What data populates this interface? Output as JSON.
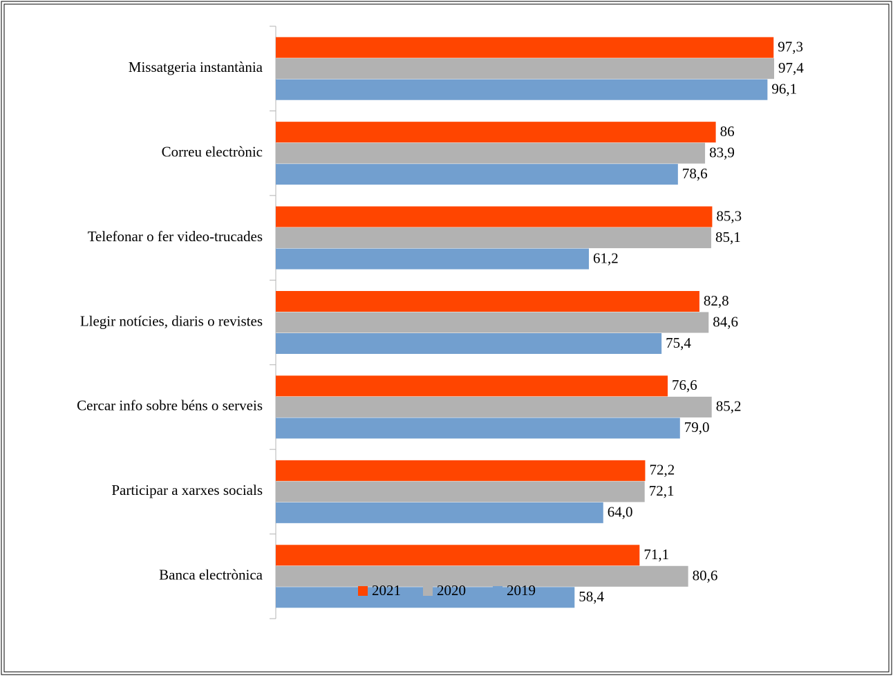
{
  "chart_data": {
    "type": "bar",
    "orientation": "horizontal",
    "categories": [
      "Missatgeria instantània",
      "Correu electrònic",
      "Telefonar o fer video-trucades",
      "Llegir notícies, diaris o revistes",
      "Cercar info sobre béns o serveis",
      "Participar a xarxes socials",
      "Banca electrònica"
    ],
    "series": [
      {
        "name": "2021",
        "color": "#ff4500",
        "values": [
          97.3,
          86,
          85.3,
          82.8,
          76.6,
          72.2,
          71.1
        ],
        "value_labels": [
          "97,3",
          "86",
          "85,3",
          "82,8",
          "76,6",
          "72,2",
          "71,1"
        ]
      },
      {
        "name": "2020",
        "color": "#b2b2b2",
        "values": [
          97.4,
          83.9,
          85.1,
          84.6,
          85.2,
          72.1,
          80.6
        ],
        "value_labels": [
          "97,4",
          "83,9",
          "85,1",
          "84,6",
          "85,2",
          "72,1",
          "80,6"
        ]
      },
      {
        "name": "2019",
        "color": "#729fcf",
        "values": [
          96.1,
          78.6,
          61.2,
          75.4,
          79.0,
          64.0,
          58.4
        ],
        "value_labels": [
          "96,1",
          "78,6",
          "61,2",
          "75,4",
          "79,0",
          "64,0",
          "58,4"
        ]
      }
    ],
    "legend": "bottom"
  }
}
